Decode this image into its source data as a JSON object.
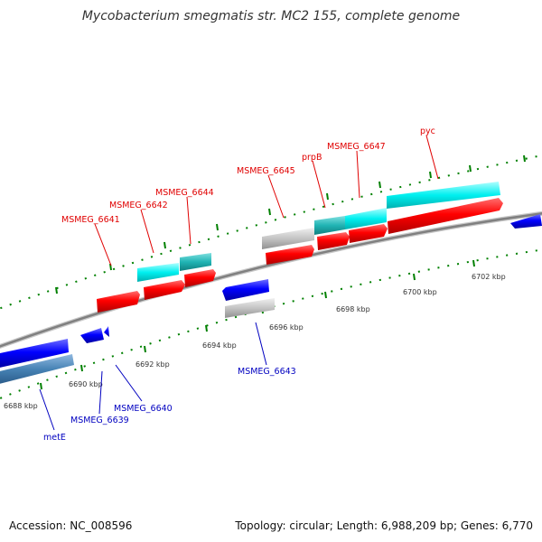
{
  "header": {
    "title": "Mycobacterium smegmatis str. MC2 155, complete genome"
  },
  "footer": {
    "accession": "Accession: NC_008596",
    "topology": "Topology: circular; Length: 6,988,209 bp; Genes: 6,770"
  },
  "scale_labels": [
    "6688 kbp",
    "6690 kbp",
    "6692 kbp",
    "6694 kbp",
    "6696 kbp",
    "6698 kbp",
    "6700 kbp",
    "6702 kbp"
  ],
  "genes_forward": [
    {
      "name": "MSMEG_6641",
      "color": "#ff0000"
    },
    {
      "name": "MSMEG_6642",
      "color": "#ff0000"
    },
    {
      "name": "MSMEG_6644",
      "color": "#ff0000"
    },
    {
      "name": "MSMEG_6645",
      "color": "#ff0000"
    },
    {
      "name": "prpB",
      "color": "#ff0000"
    },
    {
      "name": "MSMEG_6647",
      "color": "#ff0000"
    },
    {
      "name": "pyc",
      "color": "#ff0000"
    }
  ],
  "genes_reverse": [
    {
      "name": "MSMEG_6643",
      "color": "#0000ff"
    },
    {
      "name": "MSMEG_6640",
      "color": "#0000ff"
    },
    {
      "name": "MSMEG_6639",
      "color": "#0000ff"
    },
    {
      "name": "metE",
      "color": "#0000ff"
    }
  ],
  "colors": {
    "forward_cds": "#ff0000",
    "reverse_cds": "#0000ff",
    "forward_rna": "#00ffff",
    "reverse_rna": "#4682b4",
    "pseudo": "#bebebe",
    "backbone": "#808080",
    "ticks": "#008000"
  }
}
